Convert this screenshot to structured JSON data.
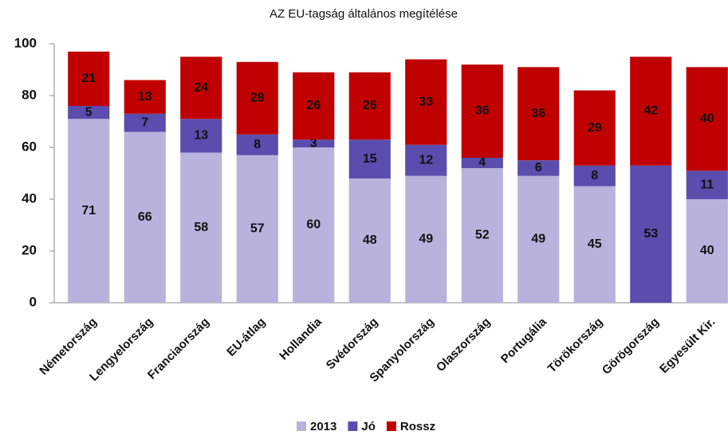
{
  "chart_data": {
    "type": "stacked_bar",
    "title": "AZ EU-tagság általános megítélése",
    "categories": [
      "Németország",
      "Lengyelország",
      "Franciaország",
      "EU-átlag",
      "Hollandia",
      "Svédország",
      "Spanyolország",
      "Olaszország",
      "Portugália",
      "Törökország",
      "Görögország",
      "Egyesült Kir."
    ],
    "series": [
      {
        "name": "2013",
        "color": "#b7b3dc",
        "values": [
          71,
          66,
          58,
          57,
          60,
          48,
          49,
          52,
          49,
          45,
          null,
          40
        ]
      },
      {
        "name": "Jó",
        "color": "#5a4dad",
        "values": [
          5,
          7,
          13,
          8,
          3,
          15,
          12,
          4,
          6,
          8,
          53,
          11
        ]
      },
      {
        "name": "Rossz",
        "color": "#c00000",
        "values": [
          21,
          13,
          24,
          28,
          26,
          26,
          33,
          36,
          36,
          29,
          42,
          40
        ]
      }
    ],
    "ylim": [
      0,
      100
    ],
    "yticks": [
      0,
      20,
      40,
      60,
      80,
      100
    ],
    "grid": false,
    "legend": "bottom"
  }
}
